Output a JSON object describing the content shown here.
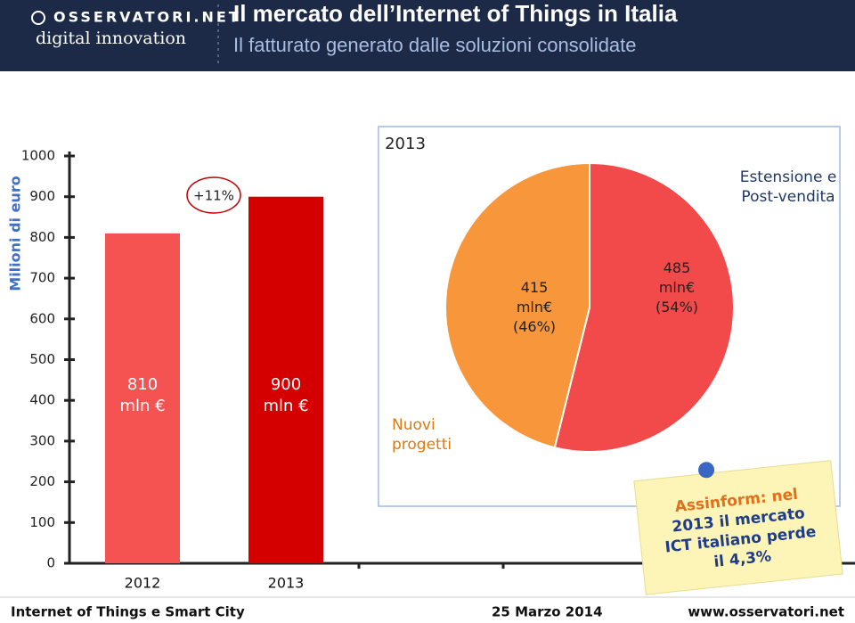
{
  "header": {
    "title": "Il mercato dell’Internet of Things in Italia",
    "subtitle": "Il fatturato generato dalle soluzioni consolidate"
  },
  "logo": {
    "name": "OSSERVATORI.NET",
    "tagline": "digital innovation"
  },
  "chart_data": [
    {
      "type": "bar",
      "ylabel": "Milioni di euro",
      "categories": [
        "2012",
        "2013"
      ],
      "values": [
        810,
        900
      ],
      "value_labels": [
        "810\nmln €",
        "900\nmln €"
      ],
      "colors": [
        "#f55252",
        "#d40000"
      ],
      "annotation": "+11%",
      "ylim": [
        0,
        1000
      ],
      "yticks": [
        0,
        100,
        200,
        300,
        400,
        500,
        600,
        700,
        800,
        900,
        1000
      ]
    },
    {
      "type": "pie",
      "title": "2013",
      "categories": [
        "Estensione e Post-vendita",
        "Nuovi progetti"
      ],
      "values": [
        485,
        415
      ],
      "value_labels": [
        "485\nmln€\n(54%)",
        "415\nmln€\n(46%)"
      ],
      "colors": [
        "#f24a4a",
        "#f7963a"
      ]
    }
  ],
  "note": {
    "lines": [
      "Assinform: nel",
      "2013 il mercato",
      "ICT italiano perde",
      "il 4,3%"
    ]
  },
  "footer": {
    "left": "Internet of Things e Smart City",
    "center": "25 Marzo 2014",
    "right": "www.osservatori.net"
  }
}
